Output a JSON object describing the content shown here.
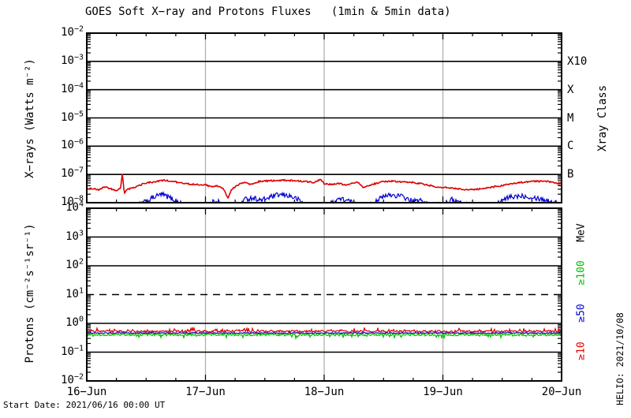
{
  "title": "GOES Soft X−ray and Protons Fluxes   (1min & 5min data)",
  "footer": {
    "start_date": "Start Date: 2021/06/16 00:00 UT",
    "watermark": "HELIO: 2021/10/08"
  },
  "colors": {
    "xray_long_red": "#dd0000",
    "xray_short_blue": "#0000d0",
    "proton_ge10_red": "#dd0000",
    "proton_ge50_blue": "#0000d0",
    "proton_ge100_green": "#00c000",
    "day_gridline_gray": "#b0b0b0",
    "axis_black": "#000000"
  },
  "chart_data": [
    {
      "id": "xray-flux-panel",
      "type": "line",
      "ylabel": "X−rays (Watts m⁻²)",
      "right_axis_title": "Xray Class",
      "right_labels": [
        {
          "text": "X10",
          "log": -3
        },
        {
          "text": "X",
          "log": -4
        },
        {
          "text": "M",
          "log": -5
        },
        {
          "text": "C",
          "log": -6
        },
        {
          "text": "B",
          "log": -7
        }
      ],
      "right_labels_rotated": false,
      "ylim_log": [
        -8,
        -2
      ],
      "x_days": 4,
      "x_ticklabels": [
        "16−Jun",
        "17−Jun",
        "18−Jun",
        "19−Jun",
        "20−Jun"
      ],
      "show_x_ticklabels": false,
      "grid_days": [
        1,
        2,
        3
      ],
      "grid_on": true,
      "legend_position": "right",
      "series": [
        {
          "name": "xray-short-wavelength",
          "color": "#0000d0",
          "width": 1.2,
          "noise": 0.09,
          "spike_prob": 0,
          "spike_amp": 0,
          "keypoints": [
            [
              0.0,
              7e-09
            ],
            [
              0.4,
              7e-09
            ],
            [
              0.5,
              1.1e-08
            ],
            [
              0.57,
              1.6e-08
            ],
            [
              0.63,
              2e-08
            ],
            [
              0.7,
              1.5e-08
            ],
            [
              0.78,
              1e-08
            ],
            [
              0.85,
              7e-09
            ],
            [
              1.0,
              6e-09
            ],
            [
              1.05,
              1e-08
            ],
            [
              1.1,
              1.2e-08
            ],
            [
              1.15,
              8e-09
            ],
            [
              1.25,
              7e-09
            ],
            [
              1.33,
              1.3e-08
            ],
            [
              1.4,
              1.5e-08
            ],
            [
              1.47,
              1.2e-08
            ],
            [
              1.55,
              1.6e-08
            ],
            [
              1.62,
              1.9e-08
            ],
            [
              1.7,
              1.8e-08
            ],
            [
              1.78,
              1.3e-08
            ],
            [
              1.85,
              8e-09
            ],
            [
              1.95,
              6e-09
            ],
            [
              2.05,
              9e-09
            ],
            [
              2.12,
              1.4e-08
            ],
            [
              2.2,
              1.2e-08
            ],
            [
              2.28,
              8e-09
            ],
            [
              2.35,
              6e-09
            ],
            [
              2.45,
              1.3e-08
            ],
            [
              2.55,
              1.9e-08
            ],
            [
              2.65,
              1.7e-08
            ],
            [
              2.75,
              1.1e-08
            ],
            [
              2.82,
              1.2e-08
            ],
            [
              2.9,
              8e-09
            ],
            [
              3.0,
              9e-09
            ],
            [
              3.08,
              1.3e-08
            ],
            [
              3.15,
              1e-08
            ],
            [
              3.25,
              7e-09
            ],
            [
              3.35,
              6e-09
            ],
            [
              3.45,
              9e-09
            ],
            [
              3.55,
              1.5e-08
            ],
            [
              3.65,
              1.8e-08
            ],
            [
              3.75,
              1.6e-08
            ],
            [
              3.85,
              1.3e-08
            ],
            [
              3.95,
              1e-08
            ],
            [
              4.0,
              9e-09
            ]
          ]
        },
        {
          "name": "xray-long-wavelength",
          "color": "#dd0000",
          "width": 1.6,
          "noise": 0.025,
          "spike_prob": 0,
          "spike_amp": 0,
          "keypoints": [
            [
              0.0,
              3e-08
            ],
            [
              0.05,
              3.2e-08
            ],
            [
              0.1,
              2.9e-08
            ],
            [
              0.15,
              3.6e-08
            ],
            [
              0.2,
              3.1e-08
            ],
            [
              0.25,
              2.6e-08
            ],
            [
              0.285,
              3.2e-08
            ],
            [
              0.3,
              1.15e-07
            ],
            [
              0.315,
              2.1e-08
            ],
            [
              0.34,
              3e-08
            ],
            [
              0.4,
              3.4e-08
            ],
            [
              0.45,
              4.2e-08
            ],
            [
              0.5,
              5e-08
            ],
            [
              0.58,
              5.5e-08
            ],
            [
              0.65,
              6.2e-08
            ],
            [
              0.7,
              5.8e-08
            ],
            [
              0.78,
              5.2e-08
            ],
            [
              0.85,
              4.6e-08
            ],
            [
              0.95,
              4.4e-08
            ],
            [
              1.0,
              4.3e-08
            ],
            [
              1.05,
              3.6e-08
            ],
            [
              1.1,
              4e-08
            ],
            [
              1.15,
              3.2e-08
            ],
            [
              1.19,
              1.4e-08
            ],
            [
              1.22,
              3e-08
            ],
            [
              1.28,
              4.4e-08
            ],
            [
              1.33,
              5.2e-08
            ],
            [
              1.38,
              4.4e-08
            ],
            [
              1.45,
              5.6e-08
            ],
            [
              1.55,
              6e-08
            ],
            [
              1.65,
              6.3e-08
            ],
            [
              1.75,
              6e-08
            ],
            [
              1.85,
              5.6e-08
            ],
            [
              1.92,
              5.2e-08
            ],
            [
              1.97,
              6.8e-08
            ],
            [
              2.0,
              4.8e-08
            ],
            [
              2.05,
              4.4e-08
            ],
            [
              2.12,
              4.8e-08
            ],
            [
              2.2,
              4.2e-08
            ],
            [
              2.28,
              5.6e-08
            ],
            [
              2.33,
              3.4e-08
            ],
            [
              2.4,
              4.4e-08
            ],
            [
              2.48,
              5.4e-08
            ],
            [
              2.55,
              5.8e-08
            ],
            [
              2.65,
              5.5e-08
            ],
            [
              2.75,
              5.2e-08
            ],
            [
              2.85,
              4.4e-08
            ],
            [
              2.95,
              3.6e-08
            ],
            [
              3.05,
              3.4e-08
            ],
            [
              3.15,
              3e-08
            ],
            [
              3.25,
              2.9e-08
            ],
            [
              3.35,
              3.2e-08
            ],
            [
              3.45,
              3.8e-08
            ],
            [
              3.55,
              4.4e-08
            ],
            [
              3.65,
              5.2e-08
            ],
            [
              3.75,
              5.6e-08
            ],
            [
              3.85,
              5.8e-08
            ],
            [
              3.92,
              5.4e-08
            ],
            [
              4.0,
              4.6e-08
            ]
          ]
        }
      ]
    },
    {
      "id": "proton-flux-panel",
      "type": "line",
      "ylabel": "Protons (cm⁻²s⁻¹sr⁻¹)",
      "right_axis_title": null,
      "right_labels": [
        {
          "text": "MeV",
          "log": 3.15,
          "color": "#000000"
        },
        {
          "text": "≥100",
          "log": 1.75,
          "color": "#00c000"
        },
        {
          "text": "≥50",
          "log": 0.36,
          "color": "#0000d0"
        },
        {
          "text": "≥10",
          "log": -0.96,
          "color": "#dd0000"
        }
      ],
      "right_labels_rotated": true,
      "ylim_log": [
        -2,
        4
      ],
      "dashed_line_log": 1,
      "x_days": 4,
      "x_ticklabels": [
        "16−Jun",
        "17−Jun",
        "18−Jun",
        "19−Jun",
        "20−Jun"
      ],
      "show_x_ticklabels": true,
      "grid_days": [
        1,
        2,
        3
      ],
      "grid_on": true,
      "legend_position": "right",
      "series": [
        {
          "name": "protons-ge50mev",
          "color": "#0000d0",
          "width": 1.2,
          "noise": 0.018,
          "spike_prob": 0,
          "spike_amp": 0,
          "keypoints": [
            [
              0,
              0.46
            ],
            [
              4,
              0.46
            ]
          ]
        },
        {
          "name": "protons-ge100mev",
          "color": "#00c000",
          "width": 1.2,
          "noise": 0.035,
          "spike_prob": 0.1,
          "spike_amp": -0.1,
          "keypoints": [
            [
              0,
              0.4
            ],
            [
              4,
              0.4
            ]
          ]
        },
        {
          "name": "protons-ge10mev",
          "color": "#dd0000",
          "width": 1.2,
          "noise": 0.035,
          "spike_prob": 0.12,
          "spike_amp": 0.1,
          "keypoints": [
            [
              0,
              0.53
            ],
            [
              4,
              0.53
            ]
          ]
        }
      ]
    }
  ]
}
